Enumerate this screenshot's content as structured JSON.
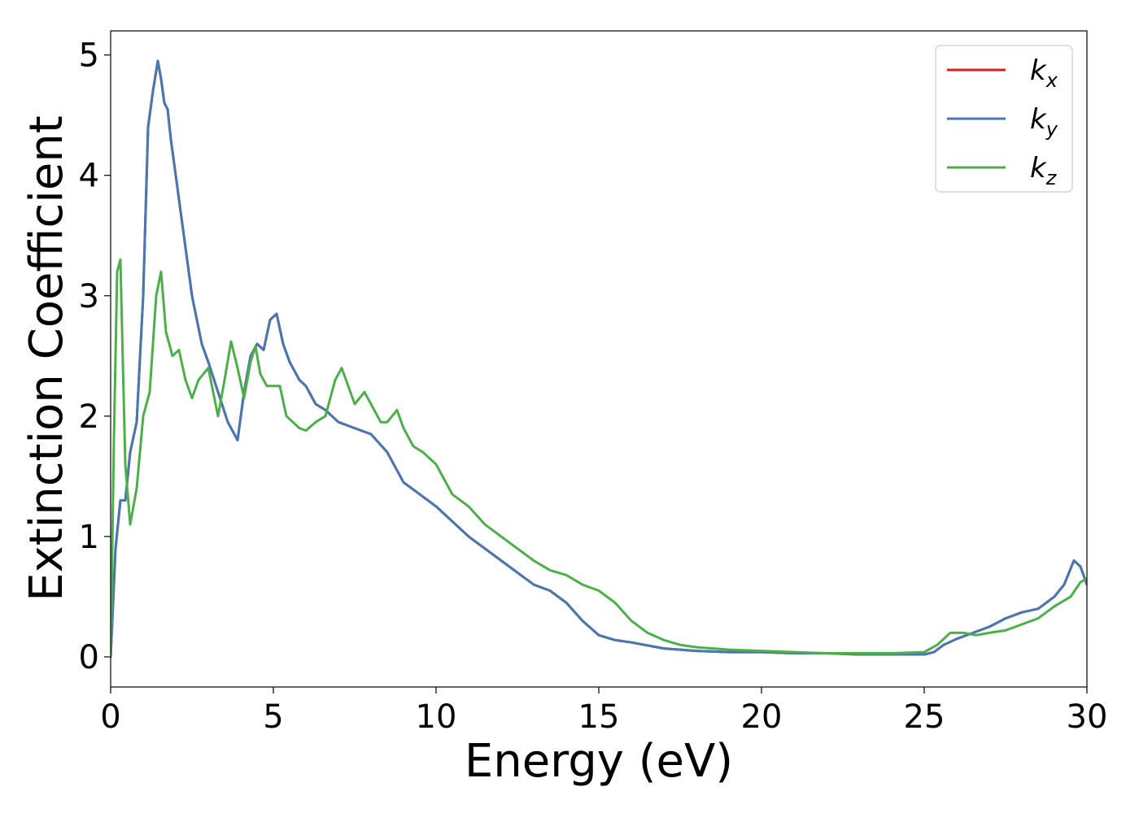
{
  "chart_data": {
    "type": "line",
    "title": "",
    "xlabel": "Energy (eV)",
    "ylabel": "Extinction Coefficient",
    "xlim": [
      0,
      30
    ],
    "ylim": [
      -0.25,
      5.2
    ],
    "xticks": [
      0,
      5,
      10,
      15,
      20,
      25,
      30
    ],
    "yticks": [
      0,
      1,
      2,
      3,
      4,
      5
    ],
    "grid": false,
    "legend_position": "top-right",
    "series": [
      {
        "name": "k",
        "subscript": "x",
        "color": "#e41a1c",
        "x": [
          0,
          0.15,
          0.3,
          0.45,
          0.6,
          0.8,
          1.0,
          1.15,
          1.3,
          1.45,
          1.55,
          1.65,
          1.75,
          1.85,
          2.0,
          2.2,
          2.5,
          2.8,
          3.0,
          3.3,
          3.6,
          3.9,
          4.1,
          4.3,
          4.5,
          4.7,
          4.9,
          5.1,
          5.3,
          5.5,
          5.8,
          6.0,
          6.3,
          6.6,
          7.0,
          7.5,
          8.0,
          8.5,
          9.0,
          9.5,
          10.0,
          11.0,
          12.0,
          13.0,
          13.5,
          14.0,
          14.5,
          15.0,
          15.5,
          16.0,
          17.0,
          18.0,
          19.0,
          20.0,
          21.0,
          22.0,
          23.0,
          24.0,
          25.0,
          25.3,
          25.6,
          26.0,
          26.5,
          27.0,
          27.5,
          28.0,
          28.5,
          29.0,
          29.3,
          29.6,
          29.8,
          30.0
        ],
        "y": [
          0,
          0.9,
          1.3,
          1.3,
          1.7,
          1.95,
          3.0,
          4.4,
          4.7,
          4.95,
          4.8,
          4.6,
          4.55,
          4.3,
          4.0,
          3.6,
          3.0,
          2.6,
          2.45,
          2.2,
          1.95,
          1.8,
          2.2,
          2.5,
          2.6,
          2.55,
          2.8,
          2.85,
          2.6,
          2.45,
          2.3,
          2.25,
          2.1,
          2.05,
          1.95,
          1.9,
          1.85,
          1.7,
          1.45,
          1.35,
          1.25,
          1.0,
          0.8,
          0.6,
          0.55,
          0.45,
          0.3,
          0.18,
          0.14,
          0.12,
          0.07,
          0.05,
          0.04,
          0.04,
          0.03,
          0.03,
          0.02,
          0.02,
          0.02,
          0.04,
          0.1,
          0.15,
          0.2,
          0.25,
          0.32,
          0.37,
          0.4,
          0.5,
          0.6,
          0.8,
          0.75,
          0.6
        ]
      },
      {
        "name": "k",
        "subscript": "y",
        "color": "#4878b0",
        "x": [
          0,
          0.15,
          0.3,
          0.45,
          0.6,
          0.8,
          1.0,
          1.15,
          1.3,
          1.45,
          1.55,
          1.65,
          1.75,
          1.85,
          2.0,
          2.2,
          2.5,
          2.8,
          3.0,
          3.3,
          3.6,
          3.9,
          4.1,
          4.3,
          4.5,
          4.7,
          4.9,
          5.1,
          5.3,
          5.5,
          5.8,
          6.0,
          6.3,
          6.6,
          7.0,
          7.5,
          8.0,
          8.5,
          9.0,
          9.5,
          10.0,
          11.0,
          12.0,
          13.0,
          13.5,
          14.0,
          14.5,
          15.0,
          15.5,
          16.0,
          17.0,
          18.0,
          19.0,
          20.0,
          21.0,
          22.0,
          23.0,
          24.0,
          25.0,
          25.3,
          25.6,
          26.0,
          26.5,
          27.0,
          27.5,
          28.0,
          28.5,
          29.0,
          29.3,
          29.6,
          29.8,
          30.0
        ],
        "y": [
          0,
          0.9,
          1.3,
          1.3,
          1.7,
          1.95,
          3.0,
          4.4,
          4.7,
          4.95,
          4.8,
          4.6,
          4.55,
          4.3,
          4.0,
          3.6,
          3.0,
          2.6,
          2.45,
          2.2,
          1.95,
          1.8,
          2.2,
          2.5,
          2.6,
          2.55,
          2.8,
          2.85,
          2.6,
          2.45,
          2.3,
          2.25,
          2.1,
          2.05,
          1.95,
          1.9,
          1.85,
          1.7,
          1.45,
          1.35,
          1.25,
          1.0,
          0.8,
          0.6,
          0.55,
          0.45,
          0.3,
          0.18,
          0.14,
          0.12,
          0.07,
          0.05,
          0.04,
          0.04,
          0.03,
          0.03,
          0.02,
          0.02,
          0.02,
          0.04,
          0.1,
          0.15,
          0.2,
          0.25,
          0.32,
          0.37,
          0.4,
          0.5,
          0.6,
          0.8,
          0.75,
          0.6
        ]
      },
      {
        "name": "k",
        "subscript": "z",
        "color": "#4daf4a",
        "x": [
          0,
          0.1,
          0.2,
          0.3,
          0.45,
          0.6,
          0.8,
          1.0,
          1.2,
          1.4,
          1.55,
          1.7,
          1.9,
          2.1,
          2.3,
          2.5,
          2.7,
          3.0,
          3.3,
          3.5,
          3.7,
          3.9,
          4.1,
          4.3,
          4.45,
          4.6,
          4.8,
          5.0,
          5.2,
          5.4,
          5.6,
          5.8,
          6.0,
          6.3,
          6.6,
          6.9,
          7.1,
          7.3,
          7.5,
          7.8,
          8.0,
          8.3,
          8.5,
          8.8,
          9.0,
          9.3,
          9.6,
          10.0,
          10.5,
          11.0,
          11.5,
          12.0,
          12.5,
          13.0,
          13.5,
          14.0,
          14.5,
          15.0,
          15.5,
          16.0,
          16.5,
          17.0,
          17.5,
          18.0,
          19.0,
          20.0,
          21.0,
          22.0,
          23.0,
          24.0,
          25.0,
          25.4,
          25.8,
          26.2,
          26.6,
          27.0,
          27.5,
          28.0,
          28.5,
          29.0,
          29.5,
          29.8,
          30.0
        ],
        "y": [
          0,
          1.8,
          3.2,
          3.3,
          1.6,
          1.1,
          1.4,
          2.0,
          2.2,
          3.0,
          3.2,
          2.7,
          2.5,
          2.55,
          2.3,
          2.15,
          2.3,
          2.4,
          2.0,
          2.3,
          2.62,
          2.4,
          2.15,
          2.45,
          2.58,
          2.35,
          2.25,
          2.25,
          2.25,
          2.0,
          1.95,
          1.9,
          1.88,
          1.95,
          2.0,
          2.3,
          2.4,
          2.25,
          2.1,
          2.2,
          2.1,
          1.95,
          1.95,
          2.05,
          1.9,
          1.75,
          1.7,
          1.6,
          1.35,
          1.25,
          1.1,
          1.0,
          0.9,
          0.8,
          0.72,
          0.68,
          0.6,
          0.55,
          0.45,
          0.3,
          0.2,
          0.14,
          0.1,
          0.08,
          0.06,
          0.05,
          0.04,
          0.03,
          0.03,
          0.03,
          0.04,
          0.1,
          0.2,
          0.2,
          0.18,
          0.2,
          0.22,
          0.27,
          0.32,
          0.42,
          0.5,
          0.62,
          0.65
        ]
      }
    ]
  }
}
